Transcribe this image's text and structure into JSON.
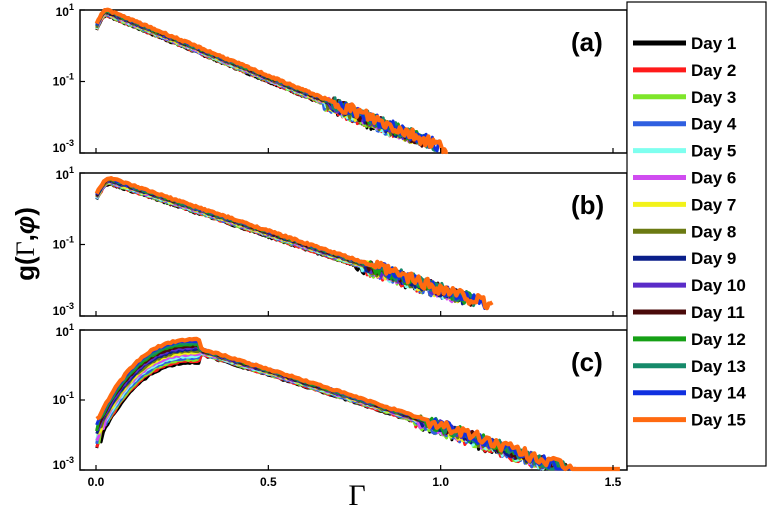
{
  "chart_data": {
    "type": "line",
    "xlabel": "Γ",
    "ylabel": {
      "prefix": "g(",
      "gamma": "Γ",
      "sep": ",",
      "phi": "φ",
      "suffix": ")"
    },
    "xlim": [
      0,
      1.5
    ],
    "ylim_log": [
      0.001,
      10
    ],
    "x_ticks": [
      {
        "value": 0.0,
        "label": "0.0"
      },
      {
        "value": 0.5,
        "label": "0.5"
      },
      {
        "value": 1.0,
        "label": "1.0"
      },
      {
        "value": 1.5,
        "label": "1.5"
      }
    ],
    "y_ticks": [
      {
        "value": 10,
        "base": "10",
        "exp": "1"
      },
      {
        "value": 0.1,
        "base": "10",
        "exp": "-1"
      },
      {
        "value": 0.001,
        "base": "10",
        "exp": "-3"
      }
    ],
    "panels": [
      {
        "label": "(a)",
        "peak_x": 0.03,
        "peak_y": 8.5,
        "start_y": 3.0,
        "tail_end_x": 1.02,
        "tail_y_at_0_5": 0.12
      },
      {
        "label": "(b)",
        "peak_x": 0.04,
        "peak_y": 6.0,
        "start_y": 2.0,
        "tail_end_x": 1.15,
        "tail_y_at_0_5": 0.2
      },
      {
        "label": "(c)",
        "peak_x": 0.3,
        "peak_y": 2.5,
        "start_y": 0.01,
        "tail_end_x": 1.52,
        "tail_y_at_0_5": 1.2
      }
    ],
    "series": [
      {
        "name": "Day 1",
        "color": "#000000"
      },
      {
        "name": "Day 2",
        "color": "#ff1a1a"
      },
      {
        "name": "Day 3",
        "color": "#7ee62a"
      },
      {
        "name": "Day 4",
        "color": "#2f5fe0"
      },
      {
        "name": "Day 5",
        "color": "#7fffef"
      },
      {
        "name": "Day 6",
        "color": "#d04cf0"
      },
      {
        "name": "Day 7",
        "color": "#f2f21a"
      },
      {
        "name": "Day 8",
        "color": "#6b7a12"
      },
      {
        "name": "Day 9",
        "color": "#0a1f8a"
      },
      {
        "name": "Day 10",
        "color": "#5a2cc8"
      },
      {
        "name": "Day 11",
        "color": "#4a0a0a"
      },
      {
        "name": "Day 12",
        "color": "#16a016"
      },
      {
        "name": "Day 13",
        "color": "#168a6a"
      },
      {
        "name": "Day 14",
        "color": "#1030e0"
      },
      {
        "name": "Day 15",
        "color": "#ff6a10"
      }
    ]
  }
}
